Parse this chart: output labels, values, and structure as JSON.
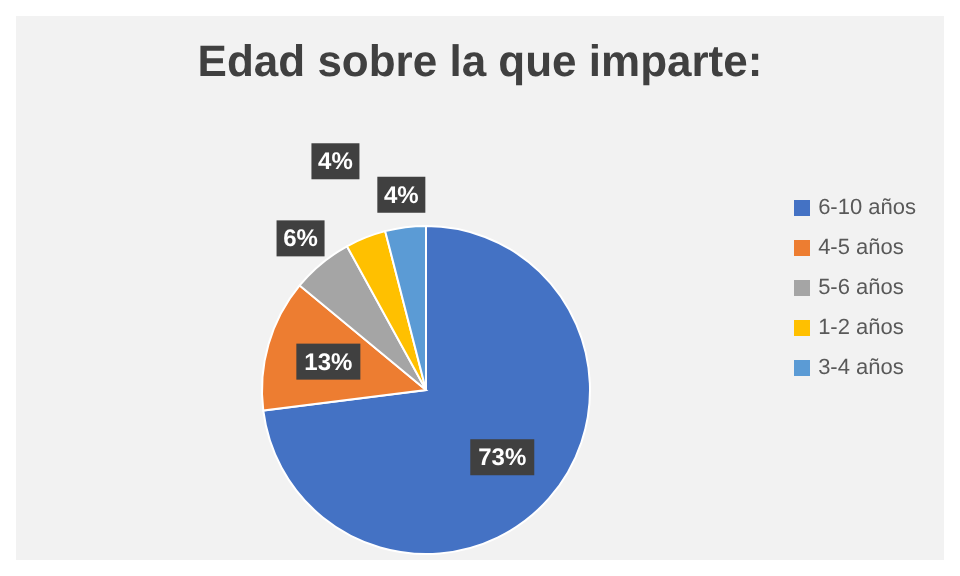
{
  "chart_data": {
    "type": "pie",
    "title": "Edad sobre la que imparte:",
    "categories": [
      "6-10 años",
      "4-5 años",
      "5-6 años",
      "1-2 años",
      "3-4 años"
    ],
    "values": [
      73,
      13,
      6,
      4,
      4
    ],
    "colors": [
      "#4472c4",
      "#ed7d31",
      "#a5a5a5",
      "#ffc000",
      "#5b9bd5"
    ],
    "value_labels": [
      "73%",
      "13%",
      "6%",
      "4%",
      "4%"
    ],
    "legend": "right"
  }
}
